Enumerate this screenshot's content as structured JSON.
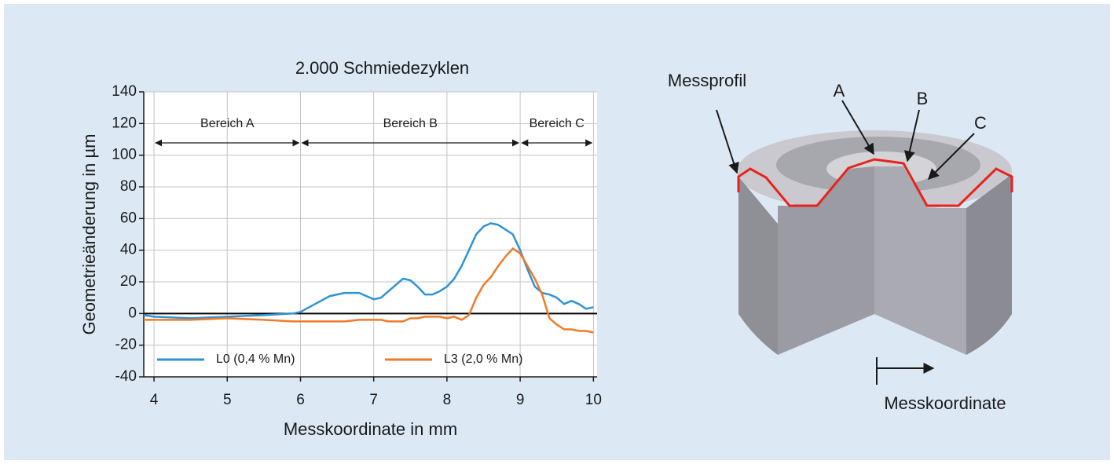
{
  "chart_data": {
    "type": "line",
    "title": "2.000 Schmiedezyklen",
    "x_label": "Messkoordinate in mm",
    "y_label": "Geometrieänderung in µm",
    "x": [
      3.86,
      4,
      4.5,
      5,
      5.5,
      5.9,
      6,
      6.2,
      6.4,
      6.6,
      6.8,
      6.9,
      7,
      7.1,
      7.2,
      7.4,
      7.5,
      7.6,
      7.7,
      7.8,
      7.9,
      8,
      8.1,
      8.2,
      8.3,
      8.4,
      8.5,
      8.6,
      8.7,
      8.8,
      8.9,
      9,
      9.1,
      9.2,
      9.3,
      9.4,
      9.5,
      9.6,
      9.7,
      9.8,
      9.9,
      10
    ],
    "series": [
      {
        "name": "L0 (0,4 % Mn)",
        "color": "#2f93d4",
        "values": [
          -1,
          -2,
          -3,
          -2,
          -1,
          0,
          1,
          6,
          11,
          13,
          13,
          11,
          9,
          10,
          14,
          22,
          21,
          17,
          12,
          12,
          14,
          17,
          22,
          30,
          40,
          50,
          55,
          57,
          56,
          53,
          50,
          40,
          28,
          17,
          13,
          12,
          10,
          6,
          8,
          6,
          3,
          4
        ]
      },
      {
        "name": "L3 (2,0 % Mn)",
        "color": "#f07a28",
        "values": [
          -4,
          -4,
          -4,
          -3,
          -4,
          -5,
          -5,
          -5,
          -5,
          -5,
          -4,
          -4,
          -4,
          -4,
          -5,
          -5,
          -3,
          -3,
          -2,
          -2,
          -2,
          -3,
          -2,
          -4,
          -1,
          10,
          18,
          23,
          30,
          36,
          41,
          38,
          30,
          22,
          12,
          -3,
          -7,
          -10,
          -10,
          -11,
          -11,
          -12
        ]
      }
    ],
    "xlim": [
      3.86,
      10.05
    ],
    "xticks": [
      4,
      5,
      6,
      7,
      8,
      9,
      10
    ],
    "ylim": [
      -40,
      140
    ],
    "yticks": [
      -40,
      -20,
      0,
      20,
      40,
      60,
      80,
      100,
      120,
      140
    ],
    "grid": true,
    "legend": "lower center",
    "regions": [
      {
        "label": "Bereich A",
        "from": 4,
        "to": 6
      },
      {
        "label": "Bereich B",
        "from": 6,
        "to": 9
      },
      {
        "label": "Bereich C",
        "from": 9,
        "to": 10
      }
    ]
  },
  "illustration": {
    "labels": [
      "Messprofil",
      "A",
      "B",
      "C",
      "Messkoordinate"
    ]
  }
}
